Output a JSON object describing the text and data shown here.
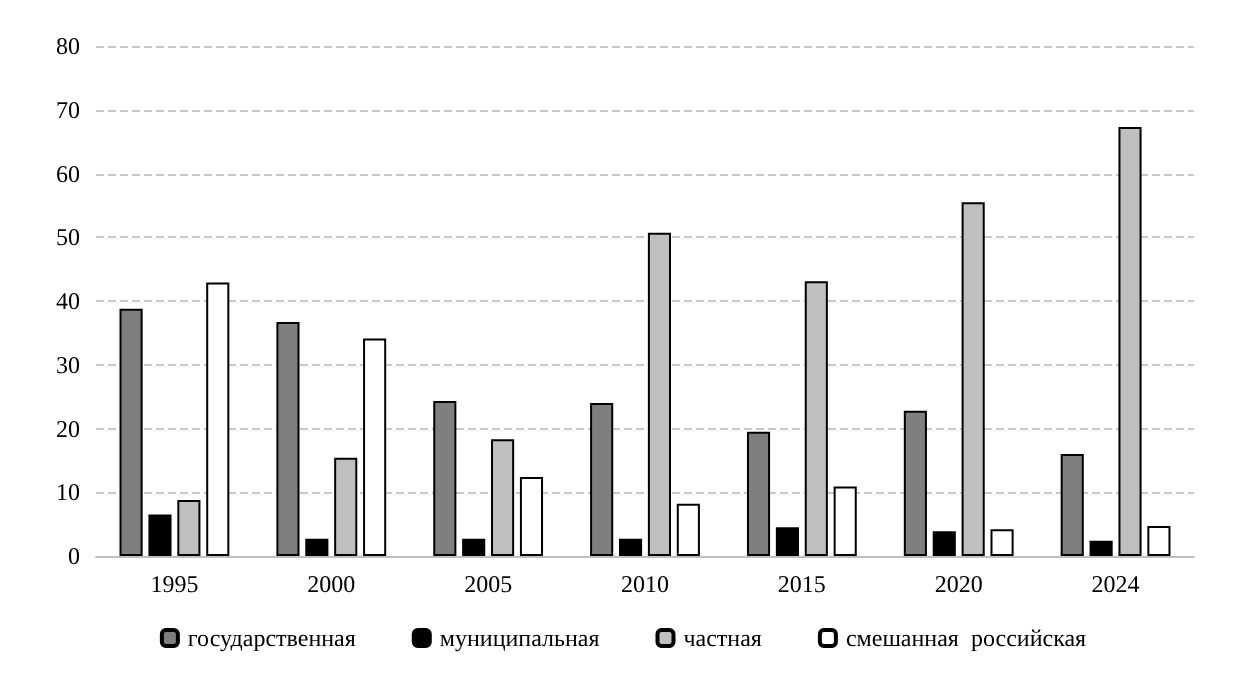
{
  "chart_data": {
    "type": "bar",
    "categories": [
      "1995",
      "2000",
      "2005",
      "2010",
      "2015",
      "2020",
      "2024"
    ],
    "series": [
      {
        "name": "государственная",
        "color": "#7f7f7f",
        "values": [
          38.8,
          36.7,
          24.3,
          24.0,
          19.5,
          22.8,
          16.0
        ]
      },
      {
        "name": "муниципальная",
        "color": "#000000",
        "values": [
          6.5,
          2.7,
          2.7,
          2.7,
          4.5,
          3.9,
          2.4
        ]
      },
      {
        "name": "частная",
        "color": "#bfbfbf",
        "values": [
          8.8,
          15.4,
          18.3,
          50.7,
          43.1,
          55.5,
          67.3
        ]
      },
      {
        "name": "смешанная  российская",
        "color": "#ffffff",
        "values": [
          42.9,
          34.1,
          12.4,
          8.2,
          10.9,
          4.2,
          4.7
        ]
      }
    ],
    "ylim": [
      0,
      80
    ],
    "yticks": [
      0,
      10,
      20,
      30,
      40,
      50,
      60,
      70,
      80
    ],
    "grid": "y",
    "legend": "bottom"
  }
}
